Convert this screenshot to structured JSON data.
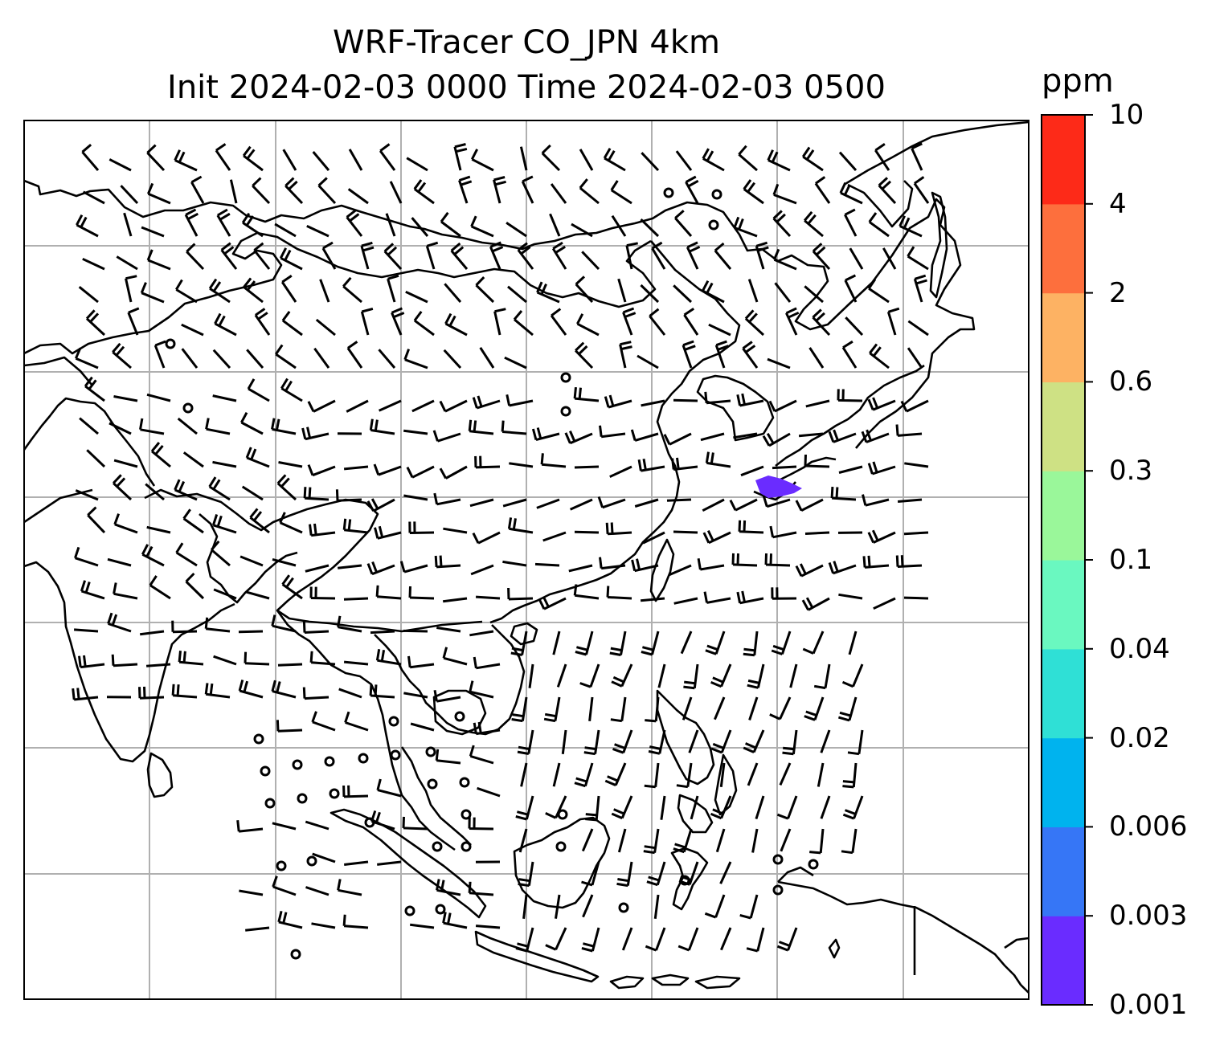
{
  "title_line1": "WRF-Tracer CO_JPN 4km",
  "title_line2": "Init 2024-02-03 0000 Time 2024-02-03 0500",
  "colorbar": {
    "unit": "ppm",
    "levels": [
      "0.001",
      "0.003",
      "0.006",
      "0.02",
      "0.04",
      "0.1",
      "0.3",
      "0.6",
      "2",
      "4",
      "10"
    ],
    "colors": [
      "#6a2cff",
      "#3676f6",
      "#00b3ee",
      "#2fe0d6",
      "#6af8c0",
      "#9af79a",
      "#cee184",
      "#fdb263",
      "#fd6f3d",
      "#fd2a18"
    ]
  },
  "map": {
    "gridlines": true,
    "wind_barbs": true,
    "tracer_plume_color": "#6a2cff"
  }
}
